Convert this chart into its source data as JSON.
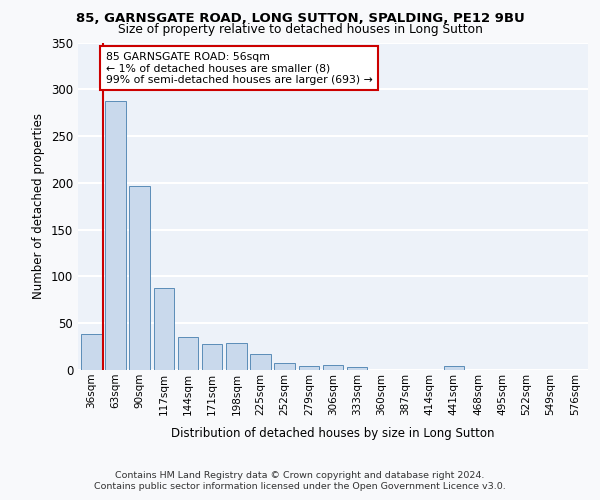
{
  "title1": "85, GARNSGATE ROAD, LONG SUTTON, SPALDING, PE12 9BU",
  "title2": "Size of property relative to detached houses in Long Sutton",
  "xlabel": "Distribution of detached houses by size in Long Sutton",
  "ylabel": "Number of detached properties",
  "bar_color": "#c9d9ec",
  "bar_edge_color": "#5b8db8",
  "categories": [
    "36sqm",
    "63sqm",
    "90sqm",
    "117sqm",
    "144sqm",
    "171sqm",
    "198sqm",
    "225sqm",
    "252sqm",
    "279sqm",
    "306sqm",
    "333sqm",
    "360sqm",
    "387sqm",
    "414sqm",
    "441sqm",
    "468sqm",
    "495sqm",
    "522sqm",
    "549sqm",
    "576sqm"
  ],
  "values": [
    38,
    287,
    197,
    88,
    35,
    28,
    29,
    17,
    8,
    4,
    5,
    3,
    0,
    0,
    0,
    4,
    0,
    0,
    0,
    0,
    0
  ],
  "ylim": [
    0,
    350
  ],
  "yticks": [
    0,
    50,
    100,
    150,
    200,
    250,
    300,
    350
  ],
  "annotation_text": "85 GARNSGATE ROAD: 56sqm\n← 1% of detached houses are smaller (8)\n99% of semi-detached houses are larger (693) →",
  "annotation_box_color": "#ffffff",
  "annotation_box_edge": "#cc0000",
  "vline_color": "#cc0000",
  "vline_x": 0.5,
  "background_color": "#edf2f9",
  "grid_color": "#ffffff",
  "fig_background": "#f8f9fb",
  "footer1": "Contains HM Land Registry data © Crown copyright and database right 2024.",
  "footer2": "Contains public sector information licensed under the Open Government Licence v3.0."
}
